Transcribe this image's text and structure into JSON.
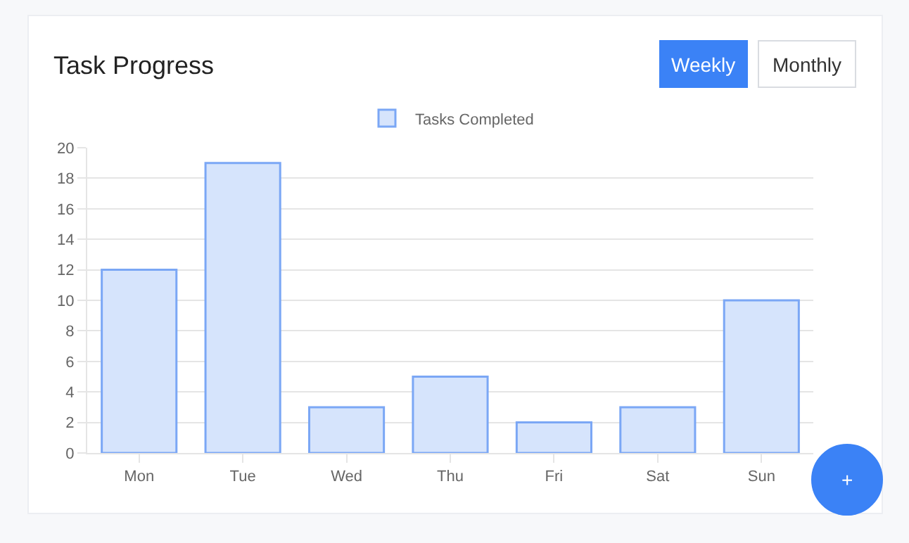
{
  "chart_data": {
    "type": "bar",
    "title": "Task Progress",
    "categories": [
      "Mon",
      "Tue",
      "Wed",
      "Thu",
      "Fri",
      "Sat",
      "Sun"
    ],
    "series": [
      {
        "name": "Tasks Completed",
        "color": "#d6e4fc",
        "values": [
          12,
          19,
          3,
          5,
          2,
          3,
          10
        ]
      }
    ],
    "ylim": [
      0,
      20
    ],
    "yticks": [
      0,
      2,
      4,
      6,
      8,
      10,
      12,
      14,
      16,
      18,
      20
    ],
    "grid": true,
    "legend": "top",
    "annotations": [
      "Weekly",
      "Monthly",
      "+"
    ]
  }
}
